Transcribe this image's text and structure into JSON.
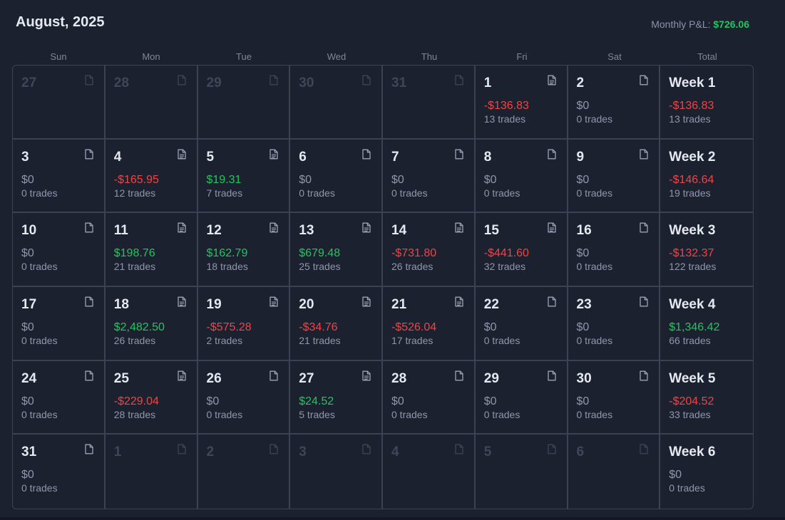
{
  "header": {
    "month_title": "August, 2025",
    "monthly_pnl_label": "Monthly P&L:",
    "monthly_pnl_value": "$726.06"
  },
  "weekdays": [
    "Sun",
    "Mon",
    "Tue",
    "Wed",
    "Thu",
    "Fri",
    "Sat",
    "Total"
  ],
  "colors": {
    "background": "#1c2130",
    "positive": "#22c55e",
    "negative": "#ef4444",
    "border": "#3a4254"
  },
  "weeks": [
    {
      "days": [
        {
          "num": "27",
          "muted": true,
          "icon": "note-icon"
        },
        {
          "num": "28",
          "muted": true,
          "icon": "note-icon"
        },
        {
          "num": "29",
          "muted": true,
          "icon": "note-icon"
        },
        {
          "num": "30",
          "muted": true,
          "icon": "note-icon"
        },
        {
          "num": "31",
          "muted": true,
          "icon": "note-icon"
        },
        {
          "num": "1",
          "pnl": "-$136.83",
          "sign": "neg",
          "trades": "13 trades",
          "icon": "note-filled-icon"
        },
        {
          "num": "2",
          "pnl": "$0",
          "sign": "zero",
          "trades": "0 trades",
          "icon": "note-icon"
        }
      ],
      "total": {
        "label": "Week 1",
        "pnl": "-$136.83",
        "sign": "neg",
        "trades": "13 trades"
      }
    },
    {
      "days": [
        {
          "num": "3",
          "pnl": "$0",
          "sign": "zero",
          "trades": "0 trades",
          "icon": "note-icon"
        },
        {
          "num": "4",
          "pnl": "-$165.95",
          "sign": "neg",
          "trades": "12 trades",
          "icon": "note-filled-icon"
        },
        {
          "num": "5",
          "pnl": "$19.31",
          "sign": "pos",
          "trades": "7 trades",
          "icon": "note-filled-icon"
        },
        {
          "num": "6",
          "pnl": "$0",
          "sign": "zero",
          "trades": "0 trades",
          "icon": "note-icon"
        },
        {
          "num": "7",
          "pnl": "$0",
          "sign": "zero",
          "trades": "0 trades",
          "icon": "note-icon"
        },
        {
          "num": "8",
          "pnl": "$0",
          "sign": "zero",
          "trades": "0 trades",
          "icon": "note-icon"
        },
        {
          "num": "9",
          "pnl": "$0",
          "sign": "zero",
          "trades": "0 trades",
          "icon": "note-icon"
        }
      ],
      "total": {
        "label": "Week 2",
        "pnl": "-$146.64",
        "sign": "neg",
        "trades": "19 trades"
      }
    },
    {
      "days": [
        {
          "num": "10",
          "pnl": "$0",
          "sign": "zero",
          "trades": "0 trades",
          "icon": "note-icon"
        },
        {
          "num": "11",
          "pnl": "$198.76",
          "sign": "pos",
          "trades": "21 trades",
          "icon": "note-filled-icon"
        },
        {
          "num": "12",
          "pnl": "$162.79",
          "sign": "pos",
          "trades": "18 trades",
          "icon": "note-filled-icon"
        },
        {
          "num": "13",
          "pnl": "$679.48",
          "sign": "pos",
          "trades": "25 trades",
          "icon": "note-filled-icon"
        },
        {
          "num": "14",
          "pnl": "-$731.80",
          "sign": "neg",
          "trades": "26 trades",
          "icon": "note-filled-icon"
        },
        {
          "num": "15",
          "pnl": "-$441.60",
          "sign": "neg",
          "trades": "32 trades",
          "icon": "note-filled-icon"
        },
        {
          "num": "16",
          "pnl": "$0",
          "sign": "zero",
          "trades": "0 trades",
          "icon": "note-icon"
        }
      ],
      "total": {
        "label": "Week 3",
        "pnl": "-$132.37",
        "sign": "neg",
        "trades": "122 trades"
      }
    },
    {
      "days": [
        {
          "num": "17",
          "pnl": "$0",
          "sign": "zero",
          "trades": "0 trades",
          "icon": "note-icon"
        },
        {
          "num": "18",
          "pnl": "$2,482.50",
          "sign": "pos",
          "trades": "26 trades",
          "icon": "note-filled-icon"
        },
        {
          "num": "19",
          "pnl": "-$575.28",
          "sign": "neg",
          "trades": "2 trades",
          "icon": "note-filled-icon"
        },
        {
          "num": "20",
          "pnl": "-$34.76",
          "sign": "neg",
          "trades": "21 trades",
          "icon": "note-filled-icon"
        },
        {
          "num": "21",
          "pnl": "-$526.04",
          "sign": "neg",
          "trades": "17 trades",
          "icon": "note-filled-icon"
        },
        {
          "num": "22",
          "pnl": "$0",
          "sign": "zero",
          "trades": "0 trades",
          "icon": "note-icon"
        },
        {
          "num": "23",
          "pnl": "$0",
          "sign": "zero",
          "trades": "0 trades",
          "icon": "note-icon"
        }
      ],
      "total": {
        "label": "Week 4",
        "pnl": "$1,346.42",
        "sign": "pos",
        "trades": "66 trades"
      }
    },
    {
      "days": [
        {
          "num": "24",
          "pnl": "$0",
          "sign": "zero",
          "trades": "0 trades",
          "icon": "note-icon"
        },
        {
          "num": "25",
          "pnl": "-$229.04",
          "sign": "neg",
          "trades": "28 trades",
          "icon": "note-filled-icon"
        },
        {
          "num": "26",
          "pnl": "$0",
          "sign": "zero",
          "trades": "0 trades",
          "icon": "note-icon"
        },
        {
          "num": "27",
          "pnl": "$24.52",
          "sign": "pos",
          "trades": "5 trades",
          "icon": "note-filled-icon"
        },
        {
          "num": "28",
          "pnl": "$0",
          "sign": "zero",
          "trades": "0 trades",
          "icon": "note-icon"
        },
        {
          "num": "29",
          "pnl": "$0",
          "sign": "zero",
          "trades": "0 trades",
          "icon": "note-icon"
        },
        {
          "num": "30",
          "pnl": "$0",
          "sign": "zero",
          "trades": "0 trades",
          "icon": "note-icon"
        }
      ],
      "total": {
        "label": "Week 5",
        "pnl": "-$204.52",
        "sign": "neg",
        "trades": "33 trades"
      }
    },
    {
      "days": [
        {
          "num": "31",
          "pnl": "$0",
          "sign": "zero",
          "trades": "0 trades",
          "icon": "note-icon"
        },
        {
          "num": "1",
          "muted": true,
          "icon": "note-icon"
        },
        {
          "num": "2",
          "muted": true,
          "icon": "note-icon"
        },
        {
          "num": "3",
          "muted": true,
          "icon": "note-icon"
        },
        {
          "num": "4",
          "muted": true,
          "icon": "note-icon"
        },
        {
          "num": "5",
          "muted": true,
          "icon": "note-icon"
        },
        {
          "num": "6",
          "muted": true,
          "icon": "note-icon"
        }
      ],
      "total": {
        "label": "Week 6",
        "pnl": "$0",
        "sign": "zero",
        "trades": "0 trades"
      }
    }
  ]
}
